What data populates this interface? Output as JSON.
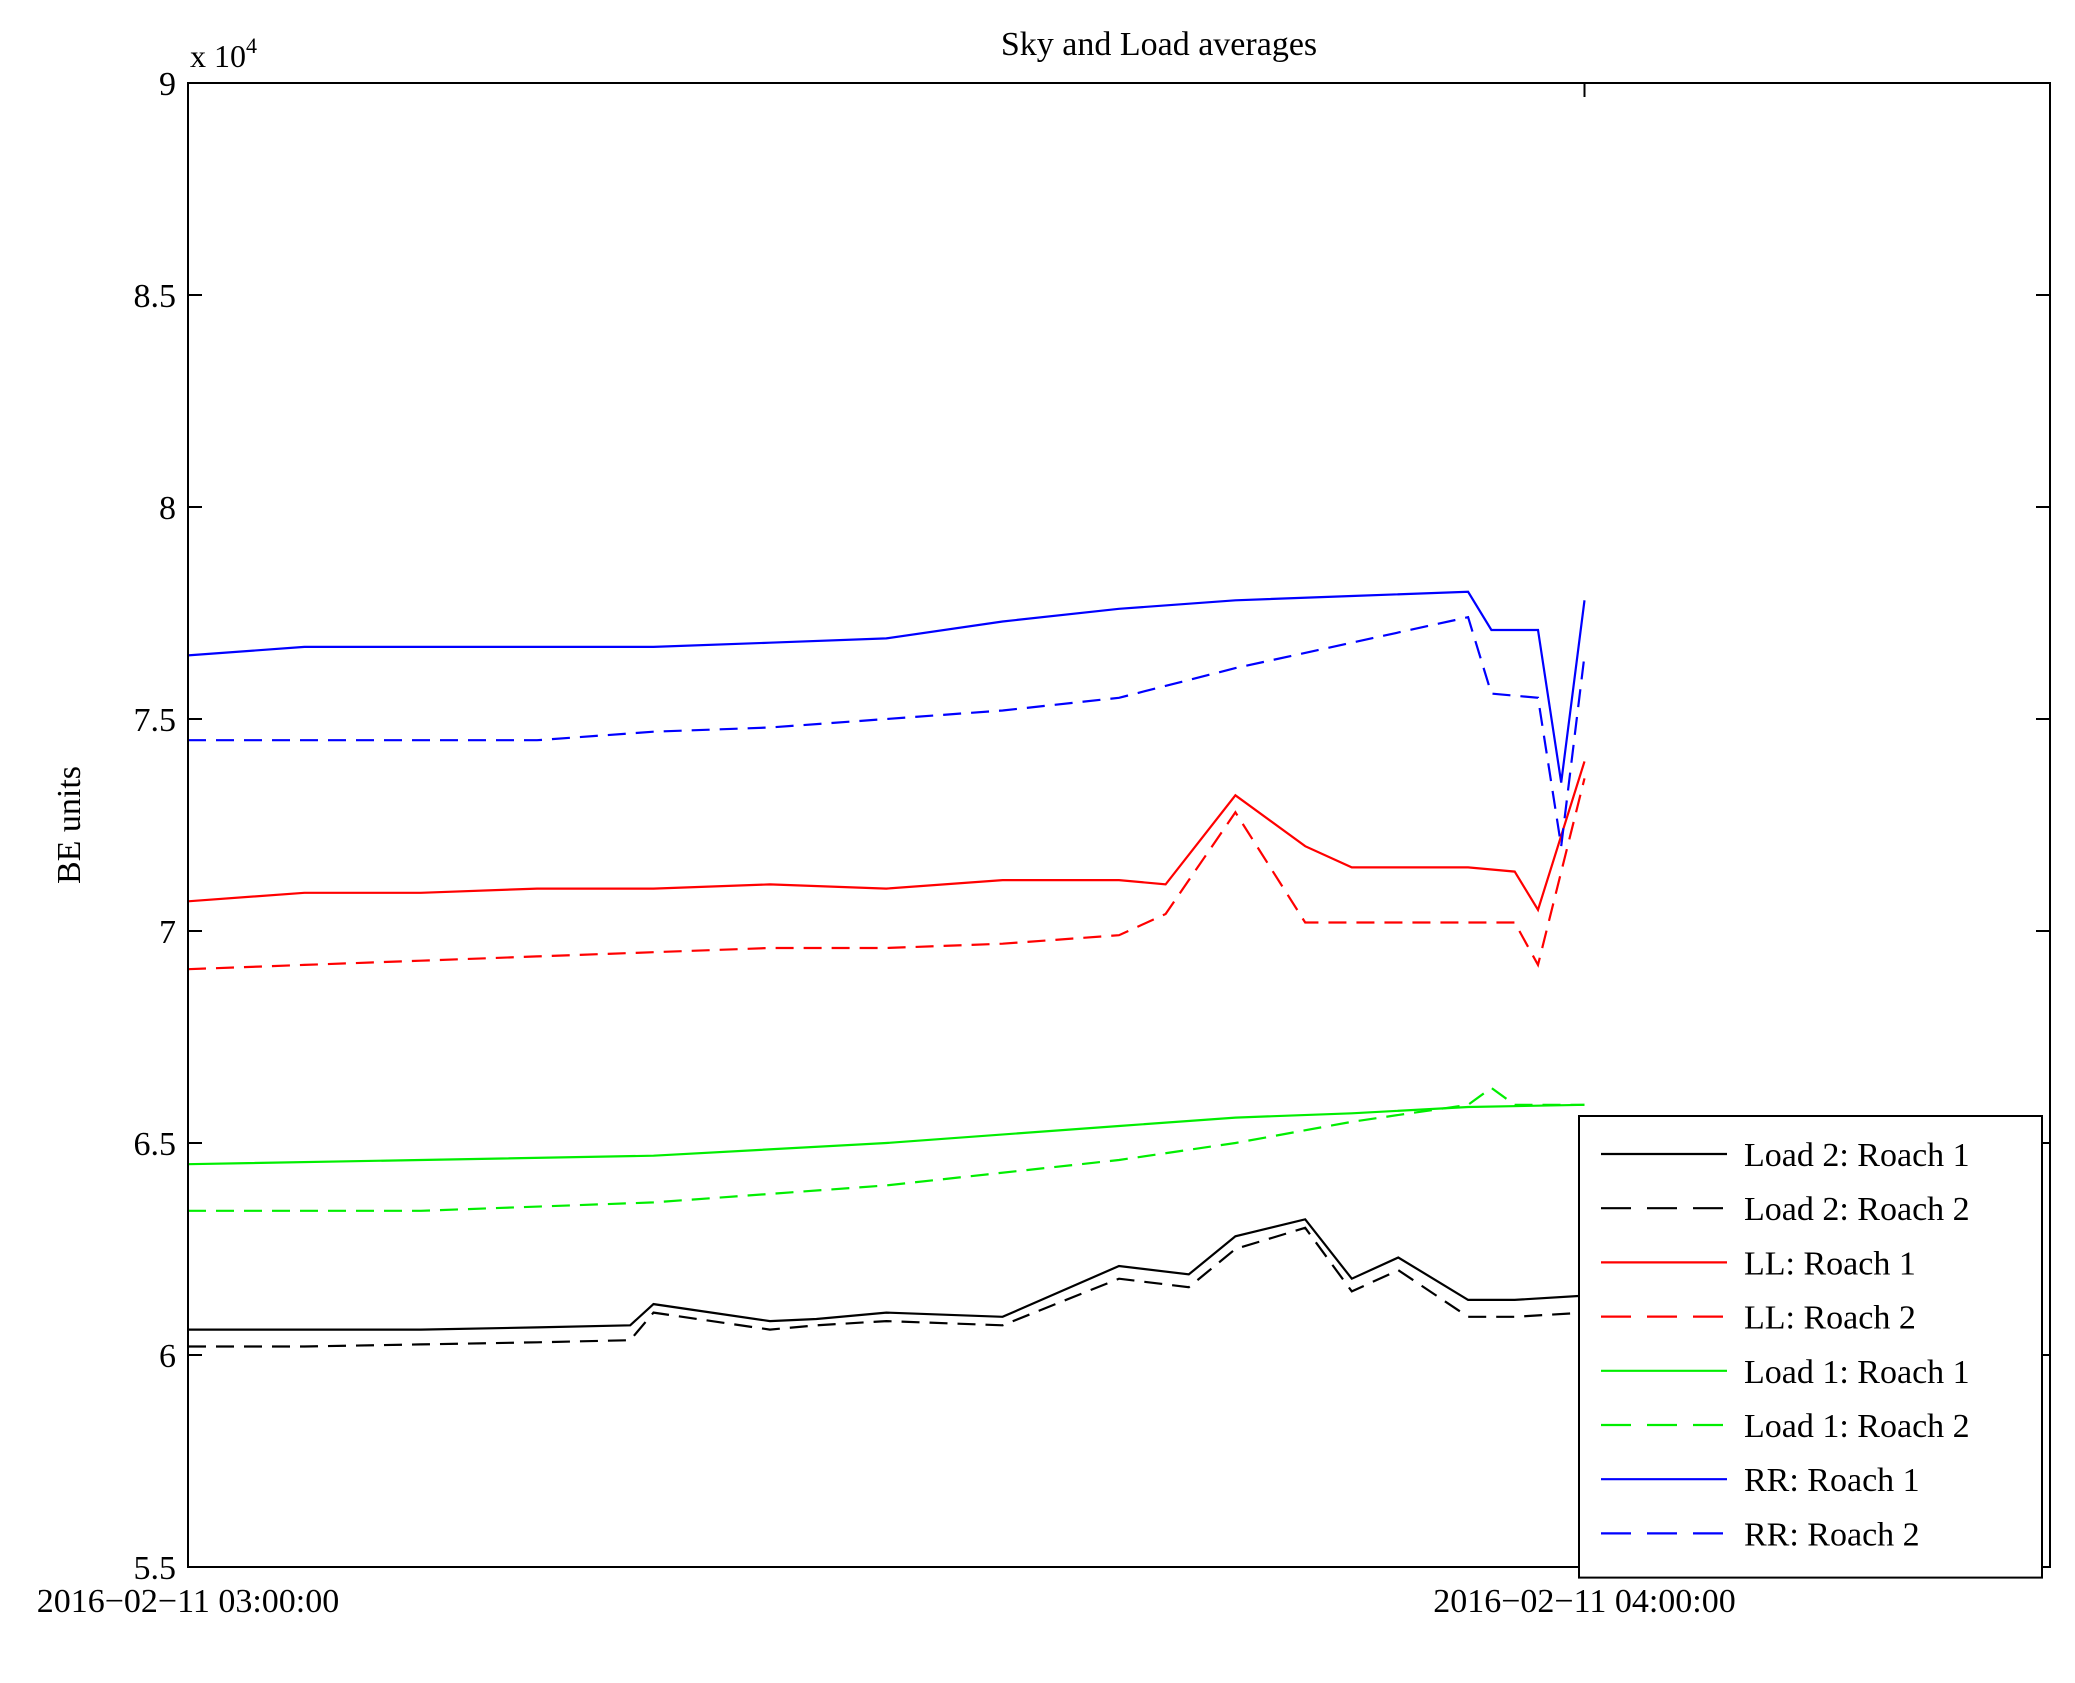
{
  "chart_data": {
    "type": "line",
    "title": "Sky and Load averages",
    "ylabel": "BE units",
    "xlabel": "",
    "y_multiplier_label": "x 10",
    "y_multiplier_exponent": "4",
    "ylim": [
      55000,
      90000
    ],
    "yticks": [
      {
        "value": 55000,
        "label": "5.5"
      },
      {
        "value": 60000,
        "label": "6"
      },
      {
        "value": 65000,
        "label": "6.5"
      },
      {
        "value": 70000,
        "label": "7"
      },
      {
        "value": 75000,
        "label": "7.5"
      },
      {
        "value": 80000,
        "label": "8"
      },
      {
        "value": 85000,
        "label": "8.5"
      },
      {
        "value": 90000,
        "label": "9"
      }
    ],
    "xlim": [
      "2016-02-11 03:00:00",
      "2016-02-11 04:20:00"
    ],
    "xticks": [
      {
        "value": "2016-02-11 03:00:00",
        "label": "2016−02−11 03:00:00"
      },
      {
        "value": "2016-02-11 04:00:00",
        "label": "2016−02−11 04:00:00"
      }
    ],
    "grid": false,
    "legend_position": "bottom-right",
    "series": [
      {
        "name": "Load 2: Roach 1",
        "color": "#000000",
        "style": "solid",
        "x": [
          "2016-02-11 03:00:00",
          "2016-02-11 03:05:00",
          "2016-02-11 03:10:00",
          "2016-02-11 03:15:00",
          "2016-02-11 03:19:00",
          "2016-02-11 03:20:00",
          "2016-02-11 03:25:00",
          "2016-02-11 03:27:00",
          "2016-02-11 03:30:00",
          "2016-02-11 03:35:00",
          "2016-02-11 03:40:00",
          "2016-02-11 03:43:00",
          "2016-02-11 03:45:00",
          "2016-02-11 03:48:00",
          "2016-02-11 03:50:00",
          "2016-02-11 03:52:00",
          "2016-02-11 03:55:00",
          "2016-02-11 03:57:00",
          "2016-02-11 04:00:00"
        ],
        "y": [
          60600,
          60600,
          60600,
          60650,
          60700,
          61200,
          60800,
          60850,
          61000,
          60900,
          62100,
          61900,
          62800,
          63200,
          61800,
          62300,
          61300,
          61300,
          61400
        ]
      },
      {
        "name": "Load 2: Roach 2",
        "color": "#000000",
        "style": "dashed",
        "x": [
          "2016-02-11 03:00:00",
          "2016-02-11 03:05:00",
          "2016-02-11 03:10:00",
          "2016-02-11 03:15:00",
          "2016-02-11 03:19:00",
          "2016-02-11 03:20:00",
          "2016-02-11 03:25:00",
          "2016-02-11 03:27:00",
          "2016-02-11 03:30:00",
          "2016-02-11 03:35:00",
          "2016-02-11 03:40:00",
          "2016-02-11 03:43:00",
          "2016-02-11 03:45:00",
          "2016-02-11 03:48:00",
          "2016-02-11 03:50:00",
          "2016-02-11 03:52:00",
          "2016-02-11 03:55:00",
          "2016-02-11 03:57:00",
          "2016-02-11 04:00:00"
        ],
        "y": [
          60200,
          60200,
          60250,
          60300,
          60350,
          61000,
          60600,
          60700,
          60800,
          60700,
          61800,
          61600,
          62500,
          63000,
          61500,
          62000,
          60900,
          60900,
          61000
        ]
      },
      {
        "name": "LL: Roach 1",
        "color": "#ff0000",
        "style": "solid",
        "x": [
          "2016-02-11 03:00:00",
          "2016-02-11 03:05:00",
          "2016-02-11 03:10:00",
          "2016-02-11 03:15:00",
          "2016-02-11 03:20:00",
          "2016-02-11 03:25:00",
          "2016-02-11 03:30:00",
          "2016-02-11 03:35:00",
          "2016-02-11 03:40:00",
          "2016-02-11 03:42:00",
          "2016-02-11 03:45:00",
          "2016-02-11 03:48:00",
          "2016-02-11 03:50:00",
          "2016-02-11 03:55:00",
          "2016-02-11 03:57:00",
          "2016-02-11 03:58:00",
          "2016-02-11 04:00:00"
        ],
        "y": [
          70700,
          70900,
          70900,
          71000,
          71000,
          71100,
          71000,
          71200,
          71200,
          71100,
          73200,
          72000,
          71500,
          71500,
          71400,
          70500,
          74000
        ]
      },
      {
        "name": "LL: Roach 2",
        "color": "#ff0000",
        "style": "dashed",
        "x": [
          "2016-02-11 03:00:00",
          "2016-02-11 03:05:00",
          "2016-02-11 03:10:00",
          "2016-02-11 03:15:00",
          "2016-02-11 03:20:00",
          "2016-02-11 03:25:00",
          "2016-02-11 03:30:00",
          "2016-02-11 03:35:00",
          "2016-02-11 03:40:00",
          "2016-02-11 03:42:00",
          "2016-02-11 03:45:00",
          "2016-02-11 03:48:00",
          "2016-02-11 03:50:00",
          "2016-02-11 03:55:00",
          "2016-02-11 03:57:00",
          "2016-02-11 03:58:00",
          "2016-02-11 04:00:00"
        ],
        "y": [
          69100,
          69200,
          69300,
          69400,
          69500,
          69600,
          69600,
          69700,
          69900,
          70400,
          72800,
          70200,
          70200,
          70200,
          70200,
          69200,
          73600
        ]
      },
      {
        "name": "Load 1: Roach 1",
        "color": "#00ee00",
        "style": "solid",
        "x": [
          "2016-02-11 03:00:00",
          "2016-02-11 03:10:00",
          "2016-02-11 03:20:00",
          "2016-02-11 03:30:00",
          "2016-02-11 03:40:00",
          "2016-02-11 03:45:00",
          "2016-02-11 03:50:00",
          "2016-02-11 03:55:00",
          "2016-02-11 04:00:00"
        ],
        "y": [
          64500,
          64600,
          64700,
          65000,
          65400,
          65600,
          65700,
          65850,
          65900
        ]
      },
      {
        "name": "Load 1: Roach 2",
        "color": "#00ee00",
        "style": "dashed",
        "x": [
          "2016-02-11 03:00:00",
          "2016-02-11 03:10:00",
          "2016-02-11 03:20:00",
          "2016-02-11 03:30:00",
          "2016-02-11 03:40:00",
          "2016-02-11 03:45:00",
          "2016-02-11 03:50:00",
          "2016-02-11 03:55:00",
          "2016-02-11 03:56:00",
          "2016-02-11 03:57:00",
          "2016-02-11 04:00:00"
        ],
        "y": [
          63400,
          63400,
          63600,
          64000,
          64600,
          65000,
          65500,
          65900,
          66300,
          65900,
          65900
        ]
      },
      {
        "name": "RR: Roach 1",
        "color": "#0000ff",
        "style": "solid",
        "x": [
          "2016-02-11 03:00:00",
          "2016-02-11 03:05:00",
          "2016-02-11 03:10:00",
          "2016-02-11 03:15:00",
          "2016-02-11 03:20:00",
          "2016-02-11 03:25:00",
          "2016-02-11 03:30:00",
          "2016-02-11 03:35:00",
          "2016-02-11 03:40:00",
          "2016-02-11 03:45:00",
          "2016-02-11 03:50:00",
          "2016-02-11 03:55:00",
          "2016-02-11 03:56:00",
          "2016-02-11 03:58:00",
          "2016-02-11 03:59:00",
          "2016-02-11 04:00:00"
        ],
        "y": [
          76500,
          76700,
          76700,
          76700,
          76700,
          76800,
          76900,
          77300,
          77600,
          77800,
          77900,
          78000,
          77100,
          77100,
          73500,
          77800
        ]
      },
      {
        "name": "RR: Roach 2",
        "color": "#0000ff",
        "style": "dashed",
        "x": [
          "2016-02-11 03:00:00",
          "2016-02-11 03:05:00",
          "2016-02-11 03:10:00",
          "2016-02-11 03:15:00",
          "2016-02-11 03:20:00",
          "2016-02-11 03:25:00",
          "2016-02-11 03:30:00",
          "2016-02-11 03:35:00",
          "2016-02-11 03:40:00",
          "2016-02-11 03:45:00",
          "2016-02-11 03:50:00",
          "2016-02-11 03:55:00",
          "2016-02-11 03:56:00",
          "2016-02-11 03:58:00",
          "2016-02-11 03:59:00",
          "2016-02-11 04:00:00"
        ],
        "y": [
          74500,
          74500,
          74500,
          74500,
          74700,
          74800,
          75000,
          75200,
          75500,
          76200,
          76800,
          77400,
          75600,
          75500,
          72000,
          76500
        ]
      }
    ]
  }
}
